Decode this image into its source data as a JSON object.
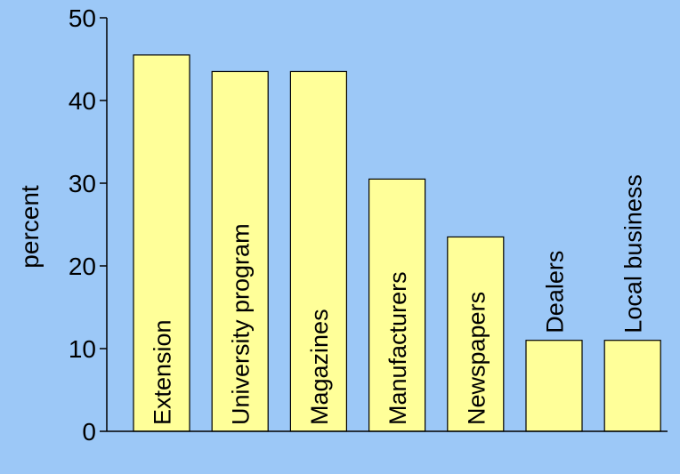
{
  "colors": {
    "background": "#9cc8f7",
    "bar_fill": "#ffff99",
    "bar_stroke": "#000000",
    "axis": "#000000"
  },
  "chart_data": {
    "type": "bar",
    "title": "",
    "xlabel": "",
    "ylabel": "percent",
    "ylim": [
      0,
      50
    ],
    "yticks": [
      0,
      10,
      20,
      30,
      40,
      50
    ],
    "grid": false,
    "categories": [
      "Extension",
      "University program",
      "Magazines",
      "Manufacturers",
      "Newspapers",
      "Dealers",
      "Local business"
    ],
    "values": [
      45.5,
      43.5,
      43.5,
      30.5,
      23.5,
      11,
      11
    ],
    "label_placement": [
      "inside",
      "inside",
      "inside",
      "inside",
      "inside",
      "above",
      "above"
    ]
  }
}
